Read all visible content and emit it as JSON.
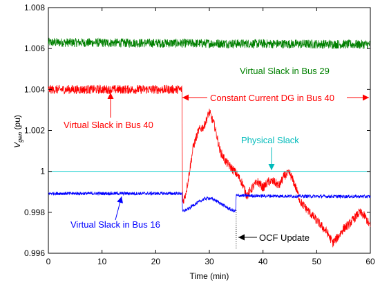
{
  "chart_data": {
    "type": "line",
    "xlabel": "Time (min)",
    "ylabel_main": "V",
    "ylabel_sub": "gen",
    "ylabel_unit": " (pu)",
    "xlim": [
      0,
      60
    ],
    "ylim": [
      0.996,
      1.008
    ],
    "xticks": [
      0,
      10,
      20,
      30,
      40,
      50,
      60
    ],
    "xtick_labels": [
      "0",
      "10",
      "20",
      "30",
      "40",
      "50",
      "60"
    ],
    "yticks": [
      0.996,
      0.998,
      1.0,
      1.002,
      1.004,
      1.006,
      1.008
    ],
    "ytick_labels": [
      "0.996",
      "0.998",
      "1",
      "1.002",
      "1.004",
      "1.006",
      "1.008"
    ],
    "grid": false,
    "series": [
      {
        "color": "#008000",
        "x": [
          0,
          60
        ],
        "y": [
          1.0063,
          1.0062
        ],
        "noise": 0.00022
      },
      {
        "color": "#ff0000",
        "x": [
          0,
          24.9,
          25,
          25.5,
          26,
          27,
          28,
          29,
          30,
          31,
          32,
          33,
          34,
          35,
          36,
          37,
          38,
          39,
          40,
          41,
          42,
          43,
          44,
          45,
          46,
          47,
          48,
          49,
          50,
          51,
          52,
          53,
          54,
          55,
          56,
          57,
          58,
          59,
          60
        ],
        "y": [
          1.004,
          1.004,
          0.9985,
          0.9988,
          0.9995,
          1.0012,
          1.002,
          1.0022,
          1.0029,
          1.0022,
          1.001,
          1.0005,
          1.0002,
          0.9999,
          0.9995,
          0.9988,
          0.9992,
          0.9995,
          0.9992,
          0.9995,
          0.9995,
          0.9993,
          0.9998,
          0.9999,
          0.9993,
          0.9985,
          0.9982,
          0.9979,
          0.9976,
          0.9973,
          0.997,
          0.9965,
          0.9968,
          0.9972,
          0.9974,
          0.9977,
          0.998,
          0.9978,
          0.9973
        ],
        "noise": 0.00022
      },
      {
        "color": "#0000ff",
        "x": [
          0,
          24.9,
          25,
          26,
          27,
          28,
          29,
          30,
          31,
          32,
          33,
          34,
          34.9,
          35,
          40,
          50,
          60
        ],
        "y": [
          0.99892,
          0.99892,
          0.99805,
          0.99815,
          0.99835,
          0.9985,
          0.99865,
          0.9987,
          0.9986,
          0.99845,
          0.99828,
          0.99812,
          0.99805,
          0.99882,
          0.9988,
          0.99878,
          0.99877
        ],
        "noise": 8e-05
      },
      {
        "color": "#00cccc",
        "x": [
          0,
          60
        ],
        "y": [
          1.0,
          1.0
        ],
        "noise": 0
      }
    ],
    "annotations": [
      {
        "text": "Virtual Slack in Bus 29",
        "color": "#008000"
      },
      {
        "text": "Constant Current DG in Bus 40",
        "color": "#ff0000"
      },
      {
        "text": "Virtual Slack in Bus 40",
        "color": "#ff0000"
      },
      {
        "text": "Physical Slack",
        "color": "#00bbbb"
      },
      {
        "text": "Virtual Slack in Bus 16",
        "color": "#0000ff"
      },
      {
        "text": "OCF Update",
        "color": "#000000"
      }
    ]
  }
}
